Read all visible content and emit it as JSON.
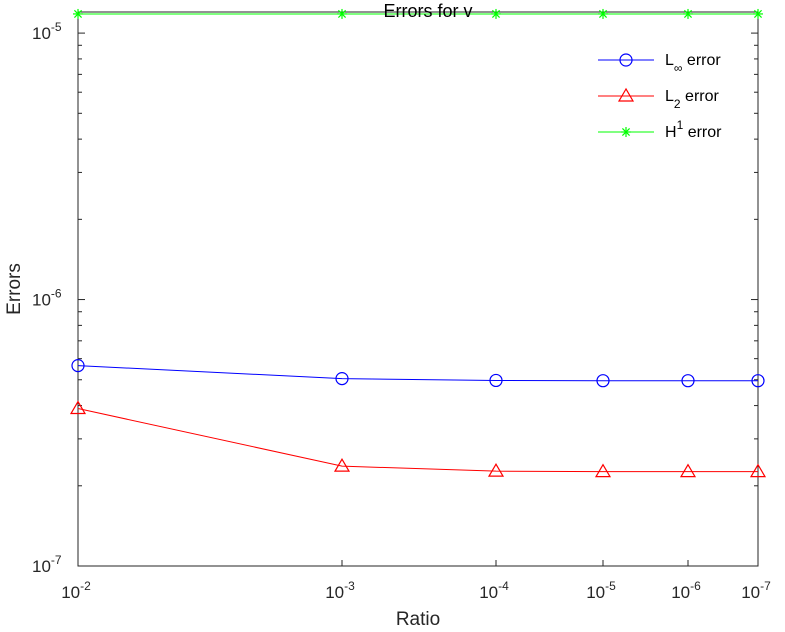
{
  "chart_data": {
    "type": "line",
    "title": "Errors  for v",
    "xlabel": "Ratio",
    "ylabel": "Errors",
    "x_scale": "log",
    "x_reversed": true,
    "y_scale": "log",
    "xlim": [
      0.01,
      1e-07
    ],
    "ylim": [
      1e-07,
      1.2e-05
    ],
    "x": [
      0.01,
      0.001,
      0.0001,
      1e-05,
      1e-06,
      1e-07
    ],
    "x_tick_labels": [
      {
        "base": "10",
        "exp": "-2"
      },
      {
        "base": "10",
        "exp": "-3"
      },
      {
        "base": "10",
        "exp": "-4"
      },
      {
        "base": "10",
        "exp": "-5"
      },
      {
        "base": "10",
        "exp": "-6"
      },
      {
        "base": "10",
        "exp": "-7"
      }
    ],
    "y_ticks": [
      1e-07,
      1e-06,
      1e-05
    ],
    "y_tick_labels": [
      {
        "base": "10",
        "exp": "-7"
      },
      {
        "base": "10",
        "exp": "-6"
      },
      {
        "base": "10",
        "exp": "-5"
      }
    ],
    "grid": false,
    "legend_position": "top-right",
    "series": [
      {
        "name": "L∞ error",
        "legend_main": "L",
        "legend_sub": "∞",
        "legend_sup": "",
        "legend_rest": " error",
        "color": "#0000ff",
        "marker": "circle",
        "values": [
          5.65e-07,
          5.05e-07,
          4.97e-07,
          4.96e-07,
          4.96e-07,
          4.96e-07
        ]
      },
      {
        "name": "L2 error",
        "legend_main": "L",
        "legend_sub": "2",
        "legend_sup": "",
        "legend_rest": " error",
        "color": "#ff0000",
        "marker": "triangle",
        "values": [
          3.9e-07,
          2.37e-07,
          2.27e-07,
          2.26e-07,
          2.26e-07,
          2.26e-07
        ]
      },
      {
        "name": "H1 error",
        "legend_main": "H",
        "legend_sub": "",
        "legend_sup": "1",
        "legend_rest": " error",
        "color": "#00ff00",
        "marker": "star",
        "values": [
          1.18e-05,
          1.18e-05,
          1.18e-05,
          1.18e-05,
          1.18e-05,
          1.18e-05
        ]
      }
    ]
  }
}
